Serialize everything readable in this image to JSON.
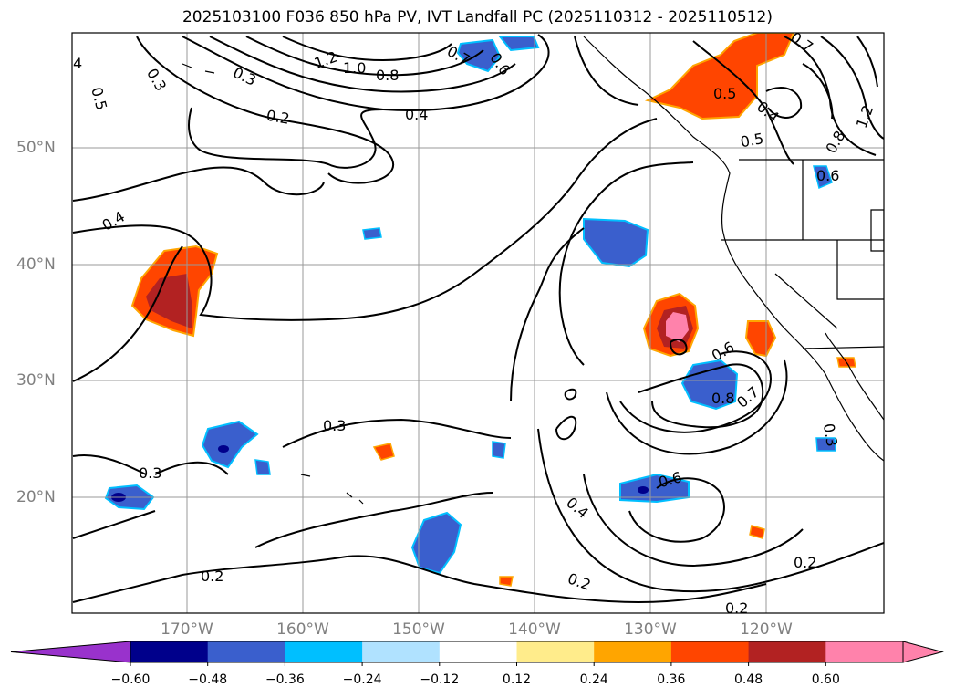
{
  "title": "2025103100 F036 850 hPa PV, IVT Landfall PC (2025110312 - 2025110512)",
  "lat_labels": [
    "50°N",
    "40°N",
    "30°N",
    "20°N"
  ],
  "lon_labels": [
    "170°W",
    "160°W",
    "150°W",
    "140°W",
    "130°W",
    "120°W"
  ],
  "contour_labels": [
    "4",
    "0.5",
    "0.3",
    "0.3",
    "1.2",
    "1.0",
    "0.8",
    "0.7",
    "0.6",
    "0.2",
    "0.4",
    "0.4",
    "0.7",
    "0.5",
    "0.4",
    "0.5",
    "0.8",
    "1.2",
    "0.6",
    "0.6",
    "0.8",
    "0.7",
    "0.3",
    "0.3",
    "0.3",
    "0.6",
    "0.4",
    "0.2",
    "0.2",
    "0.2",
    "0.2"
  ],
  "colorbar": {
    "ticks": [
      "−0.60",
      "−0.48",
      "−0.36",
      "−0.24",
      "−0.12",
      "0.12",
      "0.24",
      "0.36",
      "0.48",
      "0.60"
    ],
    "colors": [
      "#9932cc",
      "#00008b",
      "#3a5fcd",
      "#00bfff",
      "#b0e2ff",
      "#ffffff",
      "#ffec8b",
      "#ffa500",
      "#ff4500",
      "#b22222",
      "#ff82ab",
      "#ff82ab"
    ]
  },
  "map_colors": {
    "positive_core": "#b22222",
    "positive": "#ff4500",
    "positive_edge": "#ffa500",
    "positive_max": "#ff82ab",
    "negative": "#3a5fcd",
    "negative_edge": "#00bfff",
    "negative_core": "#00008b"
  }
}
